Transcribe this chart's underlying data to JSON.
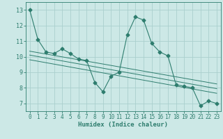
{
  "title": "",
  "xlabel": "Humidex (Indice chaleur)",
  "xlim": [
    -0.5,
    23.5
  ],
  "ylim": [
    6.5,
    13.5
  ],
  "yticks": [
    7,
    8,
    9,
    10,
    11,
    12,
    13
  ],
  "xticks": [
    0,
    1,
    2,
    3,
    4,
    5,
    6,
    7,
    8,
    9,
    10,
    11,
    12,
    13,
    14,
    15,
    16,
    17,
    18,
    19,
    20,
    21,
    22,
    23
  ],
  "background_color": "#cce8e6",
  "grid_color": "#aacfcd",
  "line_color": "#2e7d6e",
  "main_series": {
    "x": [
      0,
      1,
      2,
      3,
      4,
      5,
      6,
      7,
      8,
      9,
      10,
      11,
      12,
      13,
      14,
      15,
      16,
      17,
      18,
      19,
      20,
      21,
      22,
      23
    ],
    "y": [
      13.0,
      11.1,
      10.3,
      10.2,
      10.5,
      10.2,
      9.85,
      9.75,
      8.35,
      7.75,
      8.75,
      9.0,
      11.4,
      12.55,
      12.35,
      10.85,
      10.3,
      10.05,
      8.2,
      8.1,
      8.0,
      6.85,
      7.15,
      7.0
    ]
  },
  "trend_lines": [
    {
      "x0": 0,
      "y0": 10.35,
      "x1": 23,
      "y1": 8.25
    },
    {
      "x0": 0,
      "y0": 10.1,
      "x1": 23,
      "y1": 7.95
    },
    {
      "x0": 0,
      "y0": 9.8,
      "x1": 23,
      "y1": 7.65
    }
  ]
}
